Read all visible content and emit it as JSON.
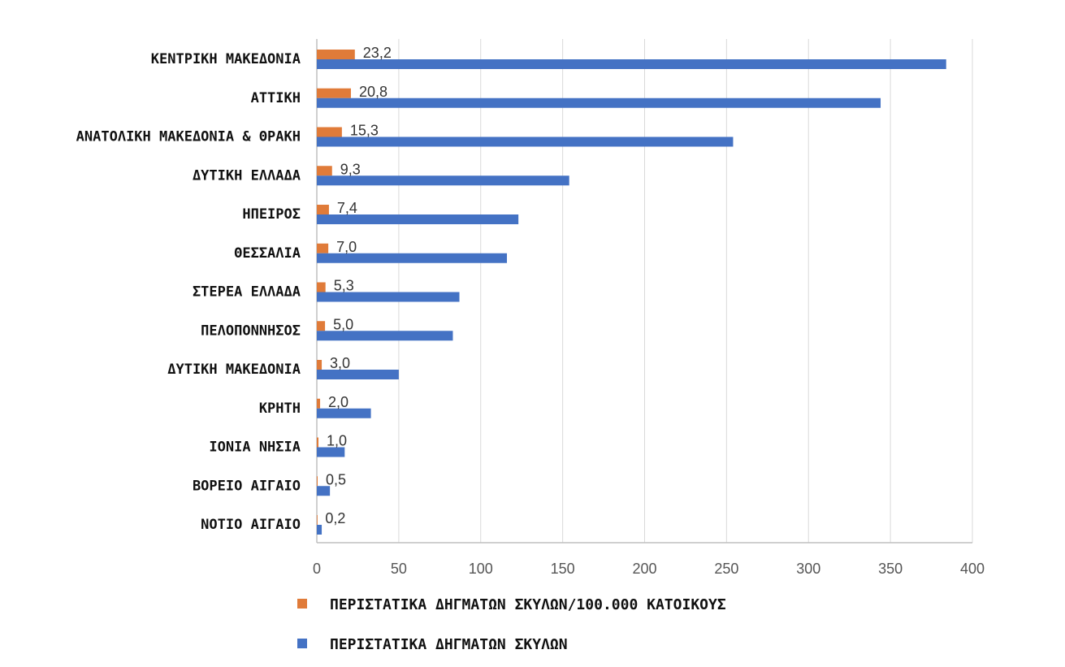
{
  "colors": {
    "orange": "#E07B39",
    "blue": "#4472C4"
  },
  "chart_data": {
    "type": "bar",
    "orientation": "horizontal",
    "categories": [
      "ΚΕΝΤΡΙΚΗ ΜΑΚΕΔΟΝΙΑ",
      "ΑΤΤΙΚΗ",
      "ΑΝΑΤΟΛΙΚΗ ΜΑΚΕΔΟΝΙΑ & ΘΡΑΚΗ",
      "ΔΥΤΙΚΗ ΕΛΛΑΔΑ",
      "ΗΠΕΙΡΟΣ",
      "ΘΕΣΣΑΛΙΑ",
      "ΣΤΕΡΕΑ ΕΛΛΑΔΑ",
      "ΠΕΛΟΠΟΝΝΗΣΟΣ",
      "ΔΥΤΙΚΗ ΜΑΚΕΔΟΝΙΑ",
      "ΚΡΗΤΗ",
      "ΙΟΝΙΑ ΝΗΣΙΑ",
      "ΒΟΡΕΙΟ ΑΙΓΑΙΟ",
      "ΝΟΤΙΟ ΑΙΓΑΙΟ"
    ],
    "series": [
      {
        "name": "ΠΕΡΙΣΤΑΤΙΚΑ ΔΗΓΜΑΤΩΝ ΣΚΥΛΩΝ/100.000 ΚΑΤΟΙΚΟΥΣ",
        "color": "#E07B39",
        "values": [
          23.2,
          20.8,
          15.3,
          9.3,
          7.4,
          7.0,
          5.3,
          5.0,
          3.0,
          2.0,
          1.0,
          0.5,
          0.2
        ],
        "labels": [
          "23,2",
          "20,8",
          "15,3",
          "9,3",
          "7,4",
          "7,0",
          "5,3",
          "5,0",
          "3,0",
          "2,0",
          "1,0",
          "0,5",
          "0,2"
        ]
      },
      {
        "name": "ΠΕΡΙΣΤΑΤΙΚΑ ΔΗΓΜΑΤΩΝ ΣΚΥΛΩΝ",
        "color": "#4472C4",
        "values": [
          384,
          344,
          254,
          154,
          123,
          116,
          87,
          83,
          50,
          33,
          17,
          8,
          3
        ]
      }
    ],
    "xlim": [
      0,
      400
    ],
    "xticks": [
      "0",
      "50",
      "100",
      "150",
      "200",
      "250",
      "300",
      "350",
      "400"
    ],
    "xtick_values": [
      0,
      50,
      100,
      150,
      200,
      250,
      300,
      350,
      400
    ],
    "grid": "vertical",
    "legend_position": "bottom"
  }
}
